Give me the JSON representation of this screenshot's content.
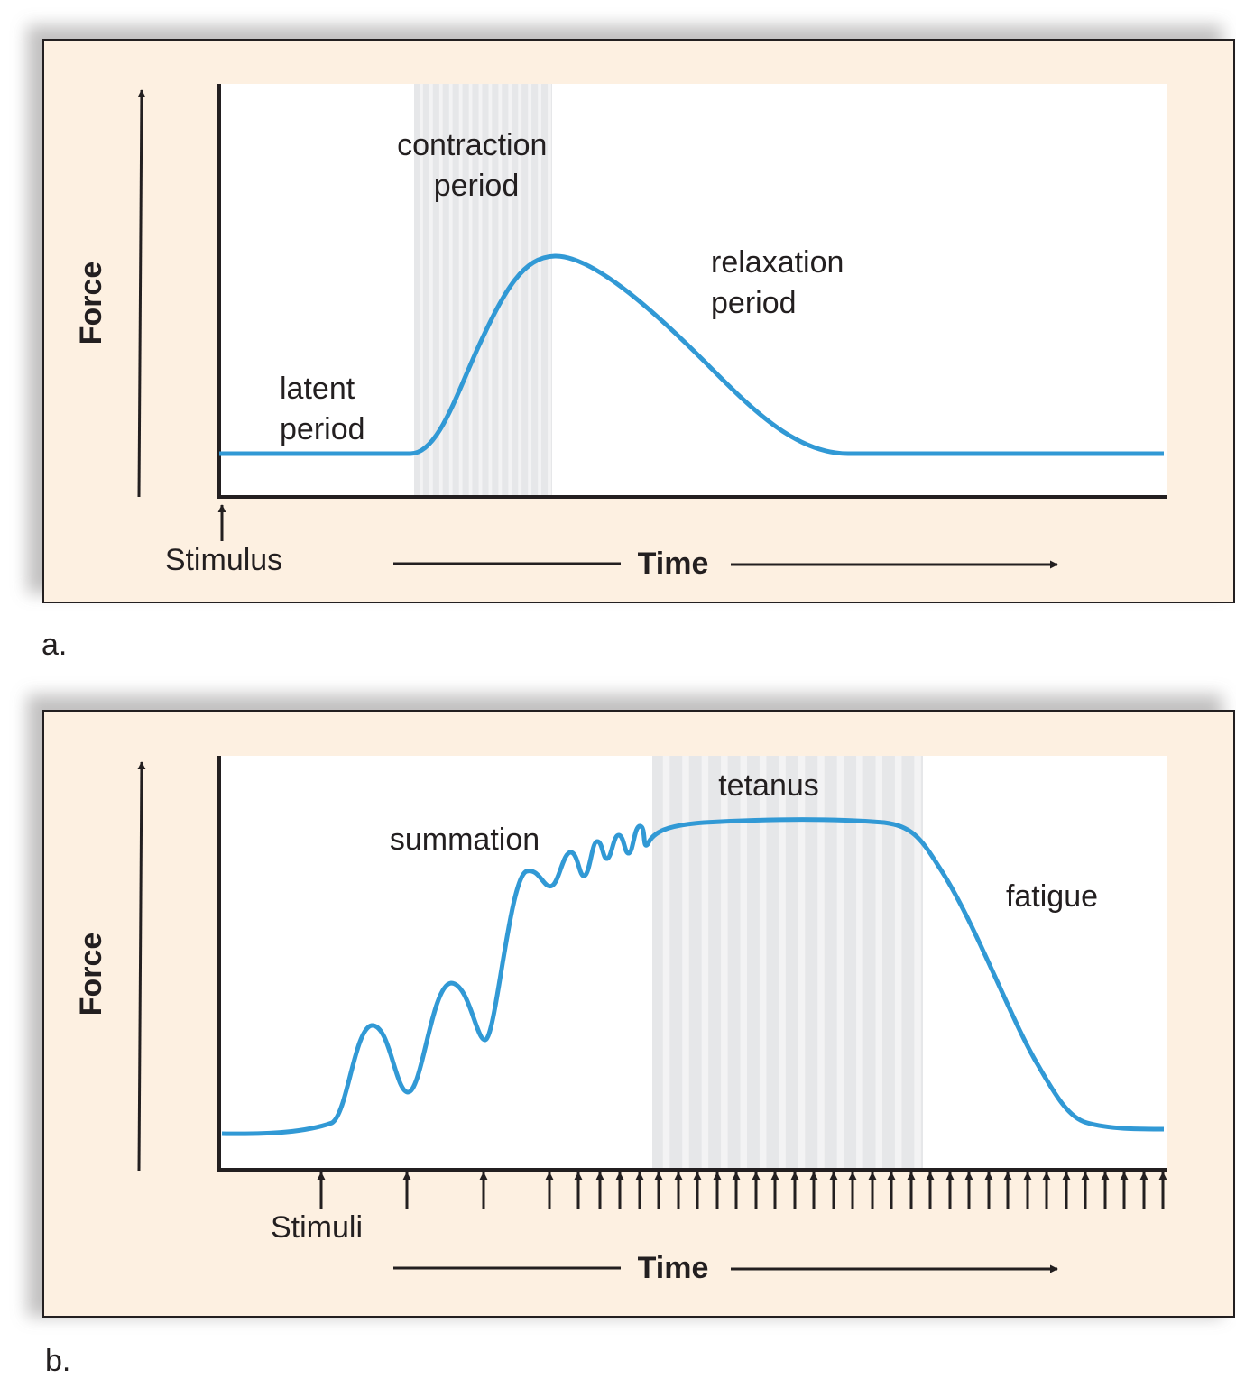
{
  "colors": {
    "panel_bg": "#fdf0e1",
    "plot_bg": "#ffffff",
    "curve": "#3199d5",
    "band": "#e6e7e9",
    "band_stripe": "#f3f3f4",
    "shadow": "#b7b6b6",
    "ink": "#231f20"
  },
  "panel_a": {
    "letter": "a.",
    "y_axis_label": "Force",
    "x_axis_label": "Time",
    "stimulus_label": "Stimulus",
    "latent": [
      "latent",
      "period"
    ],
    "contraction": [
      "contraction",
      "period"
    ],
    "relaxation": [
      "relaxation",
      "period"
    ]
  },
  "panel_b": {
    "letter": "b.",
    "y_axis_label": "Force",
    "x_axis_label": "Time",
    "stimuli_label": "Stimuli",
    "summation": "summation",
    "tetanus": "tetanus",
    "fatigue": "fatigue"
  }
}
